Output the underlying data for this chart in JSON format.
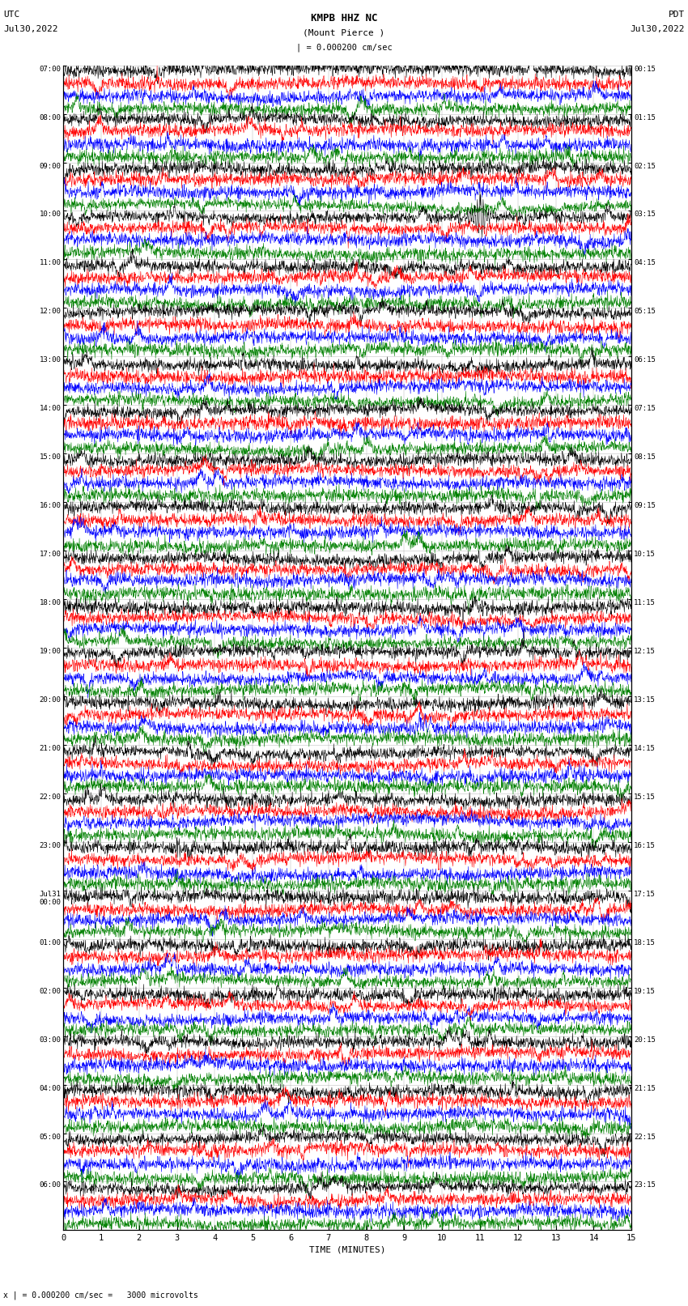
{
  "title_line1": "KMPB HHZ NC",
  "title_line2": "(Mount Pierce )",
  "title_line3": "| = 0.000200 cm/sec",
  "left_header_1": "UTC",
  "left_header_2": "Jul30,2022",
  "right_header_1": "PDT",
  "right_header_2": "Jul30,2022",
  "xlabel": "TIME (MINUTES)",
  "footer": "x | = 0.000200 cm/sec =   3000 microvolts",
  "x_ticks": [
    0,
    1,
    2,
    3,
    4,
    5,
    6,
    7,
    8,
    9,
    10,
    11,
    12,
    13,
    14,
    15
  ],
  "utc_labels": [
    "07:00",
    "08:00",
    "09:00",
    "10:00",
    "11:00",
    "12:00",
    "13:00",
    "14:00",
    "15:00",
    "16:00",
    "17:00",
    "18:00",
    "19:00",
    "20:00",
    "21:00",
    "22:00",
    "23:00",
    "Jul31\n00:00",
    "01:00",
    "02:00",
    "03:00",
    "04:00",
    "05:00",
    "06:00"
  ],
  "pdt_labels": [
    "00:15",
    "01:15",
    "02:15",
    "03:15",
    "04:15",
    "05:15",
    "06:15",
    "07:15",
    "08:15",
    "09:15",
    "10:15",
    "11:15",
    "12:15",
    "13:15",
    "14:15",
    "15:15",
    "16:15",
    "17:15",
    "18:15",
    "19:15",
    "20:15",
    "21:15",
    "22:15",
    "23:15"
  ],
  "trace_colors": [
    "black",
    "red",
    "blue",
    "green"
  ],
  "n_hour_groups": 24,
  "n_traces_per_group": 4,
  "background_color": "white",
  "event_group": 3,
  "event_minute": 11.0,
  "seismic_event_row": 0
}
